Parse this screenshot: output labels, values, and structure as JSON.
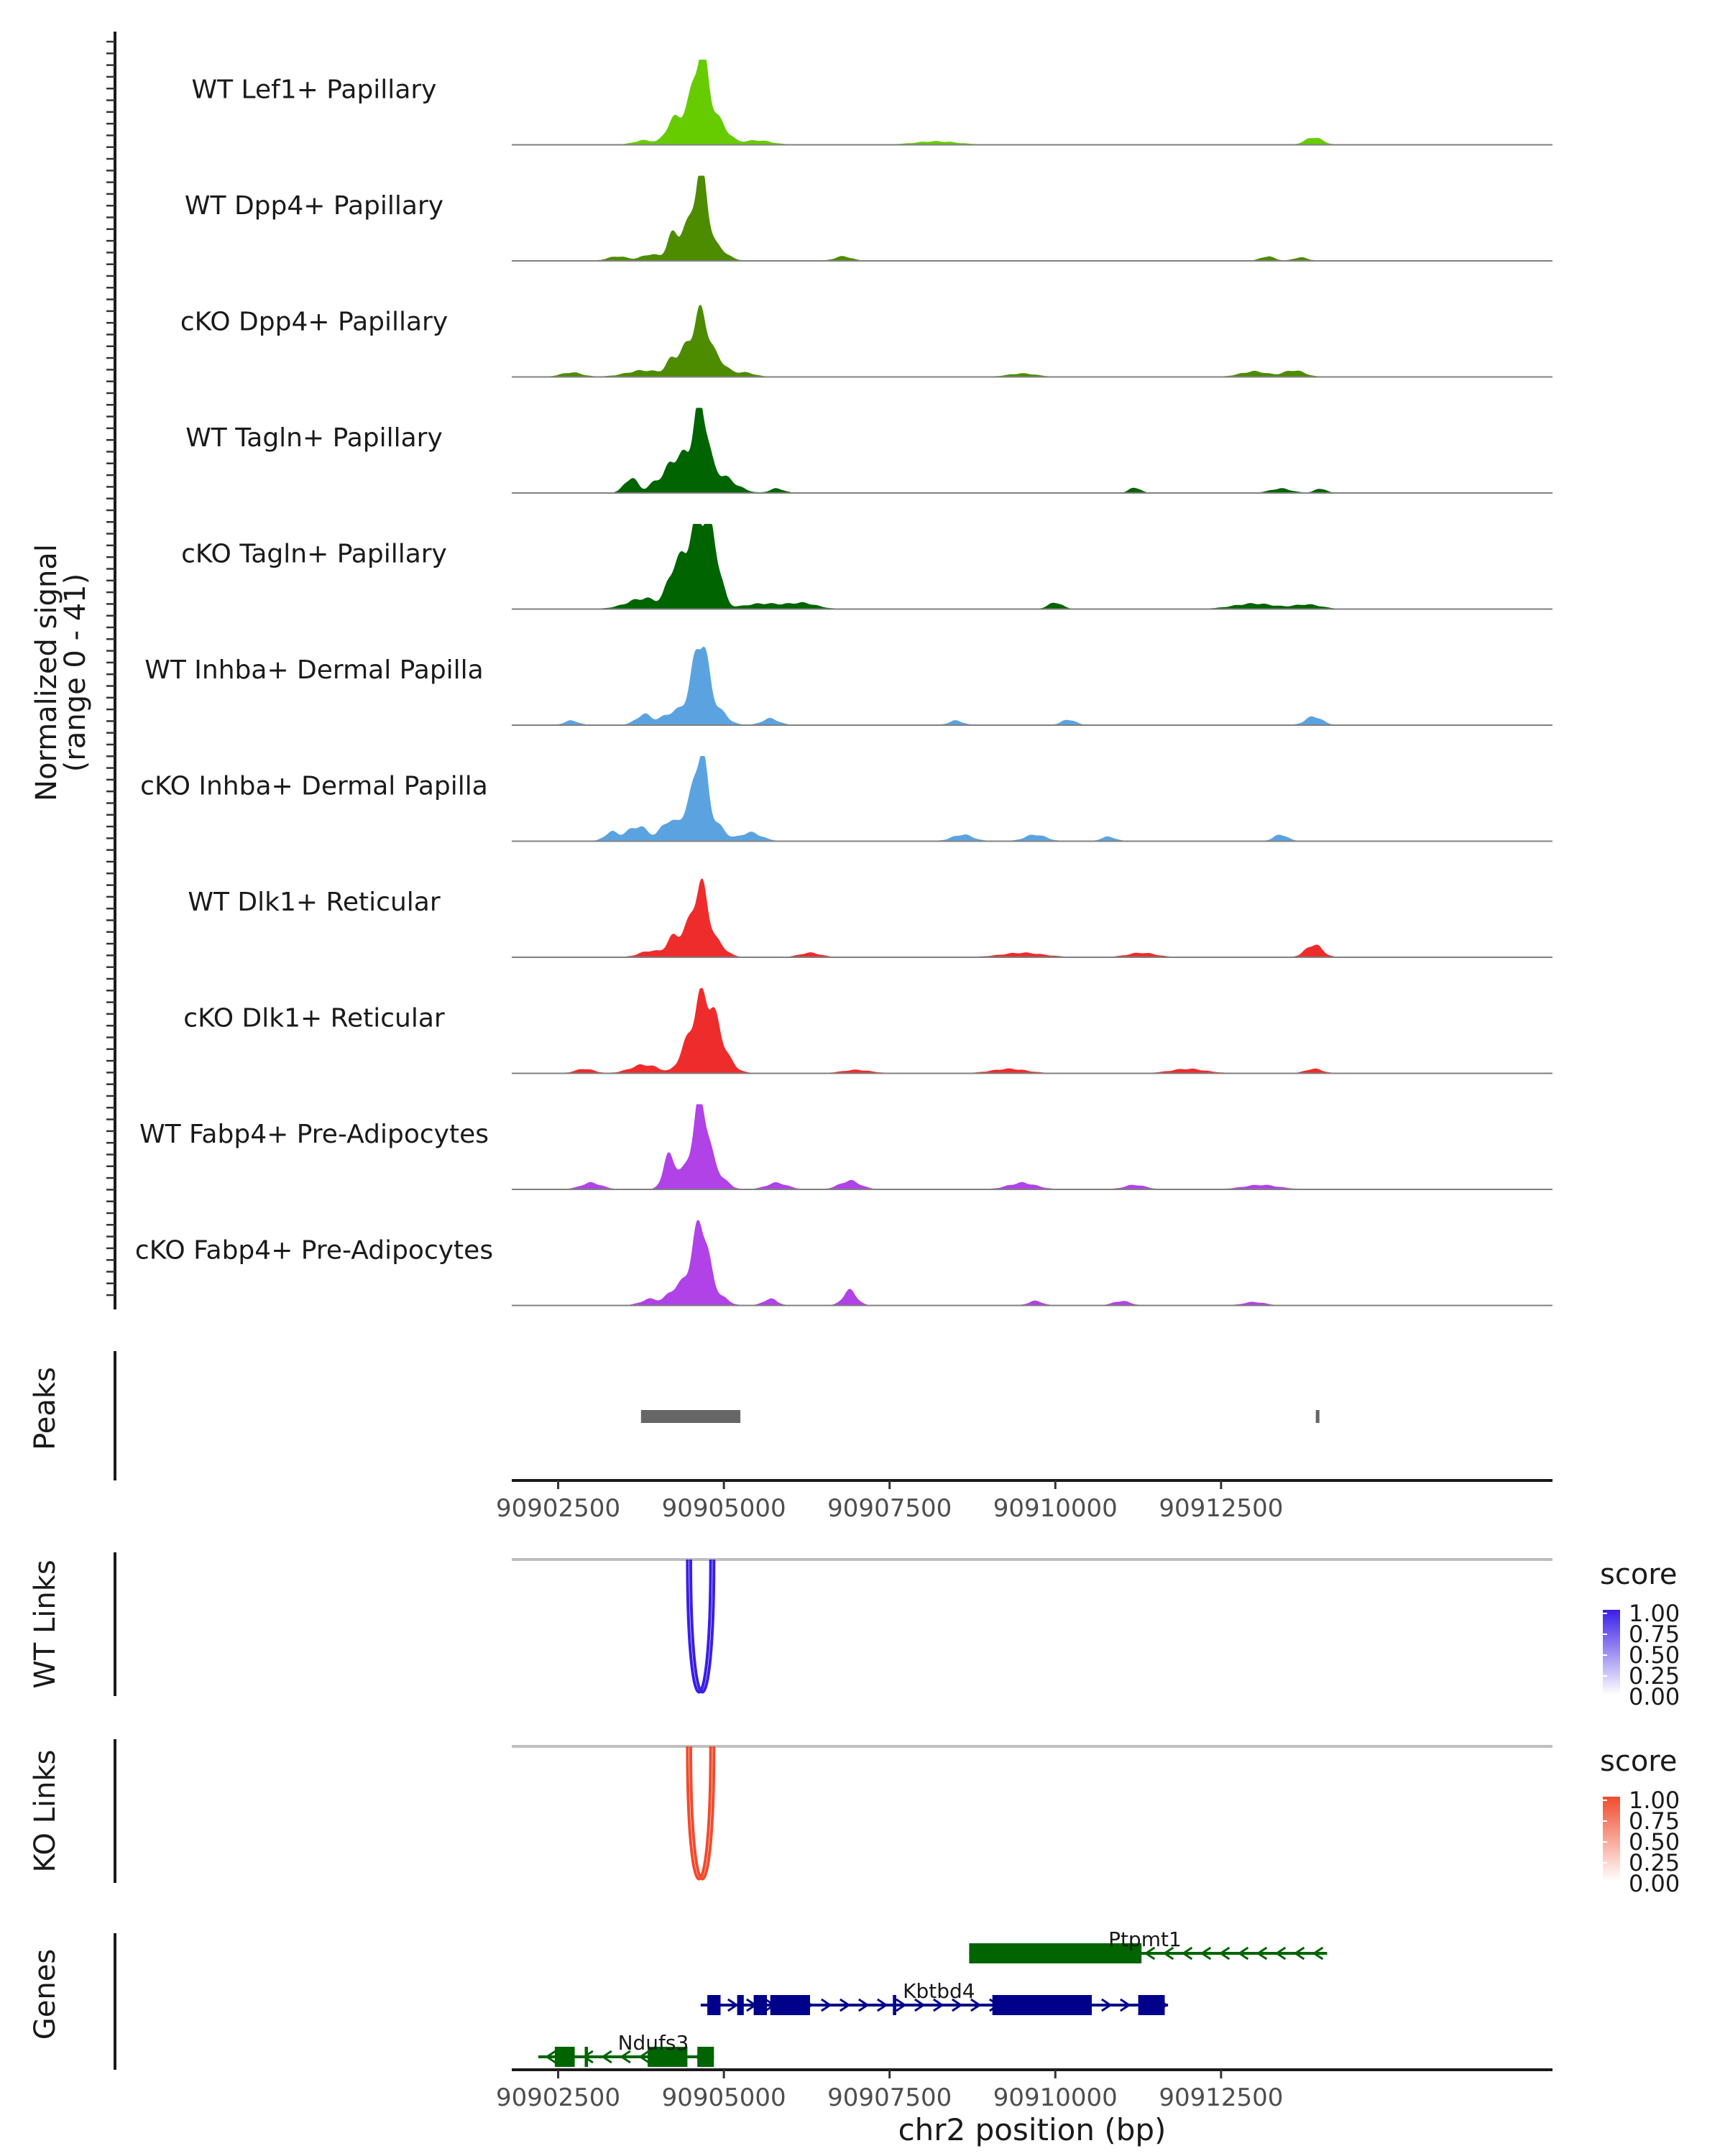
{
  "chart_data": {
    "type": "area",
    "title": "",
    "chromosome": "chr2",
    "xlabel": "chr2 position (bp)",
    "xlim": [
      90901800,
      90917500
    ],
    "x_ticks": [
      90902500,
      90905000,
      90907500,
      90910000,
      90912500
    ],
    "x_tick_labels": [
      "90902500",
      "90905000",
      "90907500",
      "90910000",
      "90912500"
    ],
    "coverage": {
      "ylabel_line1": "Normalized signal",
      "ylabel_line2": "(range 0 - 41)",
      "ylim": [
        0,
        41
      ],
      "data_extent": [
        90901800,
        90914200
      ],
      "tracks": [
        {
          "name": "WT Lef1+ Papillary",
          "color": "#66cc00",
          "peaks": [
            [
              90904650,
              41,
              110
            ],
            [
              90904400,
              12,
              120
            ],
            [
              90904200,
              8,
              100
            ],
            [
              90904900,
              11,
              150
            ],
            [
              90903800,
              2,
              150
            ],
            [
              90905500,
              2,
              200
            ],
            [
              90908200,
              1.5,
              300
            ],
            [
              90913900,
              3.5,
              120
            ]
          ]
        },
        {
          "name": "WT Dpp4+ Papillary",
          "color": "#4d8c00",
          "peaks": [
            [
              90904650,
              41,
              100
            ],
            [
              90904420,
              13,
              100
            ],
            [
              90904220,
              11,
              80
            ],
            [
              90904900,
              6,
              140
            ],
            [
              90903400,
              2,
              140
            ],
            [
              90903900,
              3,
              140
            ],
            [
              90906800,
              2,
              120
            ],
            [
              90913200,
              2,
              100
            ],
            [
              90913700,
              1.5,
              100
            ]
          ]
        },
        {
          "name": "cKO Dpp4+ Papillary",
          "color": "#4d8c00",
          "peaks": [
            [
              90904650,
              29,
              110
            ],
            [
              90904420,
              11,
              100
            ],
            [
              90904220,
              7,
              90
            ],
            [
              90904900,
              8,
              130
            ],
            [
              90902700,
              2,
              150
            ],
            [
              90903800,
              3,
              260
            ],
            [
              90905300,
              2,
              150
            ],
            [
              90909500,
              1.5,
              200
            ],
            [
              90913000,
              2.5,
              200
            ],
            [
              90913600,
              3,
              150
            ]
          ]
        },
        {
          "name": "WT Tagln+ Papillary",
          "color": "#006400",
          "peaks": [
            [
              90904650,
              40,
              100
            ],
            [
              90904420,
              16,
              100
            ],
            [
              90904220,
              13,
              90
            ],
            [
              90904900,
              8,
              150
            ],
            [
              90903600,
              7,
              100
            ],
            [
              90904000,
              6,
              110
            ],
            [
              90905150,
              3,
              150
            ],
            [
              90905800,
              2,
              100
            ],
            [
              90911200,
              2.5,
              80
            ],
            [
              90913400,
              2,
              150
            ],
            [
              90914000,
              2,
              80
            ]
          ]
        },
        {
          "name": "cKO Tagln+ Papillary",
          "color": "#006400",
          "peaks": [
            [
              90904650,
              38,
              120
            ],
            [
              90904420,
              22,
              110
            ],
            [
              90904220,
              14,
              90
            ],
            [
              90904850,
              24,
              110
            ],
            [
              90903800,
              5,
              250
            ],
            [
              90905600,
              2.5,
              300
            ],
            [
              90906200,
              2.5,
              200
            ],
            [
              90910000,
              3,
              100
            ],
            [
              90913000,
              2.5,
              300
            ],
            [
              90913800,
              2,
              200
            ]
          ]
        },
        {
          "name": "WT Inhba+ Dermal Papilla",
          "color": "#5ba3e0",
          "peaks": [
            [
              90904650,
              38,
              110
            ],
            [
              90904420,
              8,
              140
            ],
            [
              90904150,
              4,
              110
            ],
            [
              90904900,
              7,
              140
            ],
            [
              90903800,
              5,
              120
            ],
            [
              90902700,
              2,
              100
            ],
            [
              90905700,
              3,
              120
            ],
            [
              90908500,
              2,
              100
            ],
            [
              90910200,
              2.5,
              100
            ],
            [
              90913900,
              4,
              120
            ]
          ]
        },
        {
          "name": "cKO Inhba+ Dermal Papilla",
          "color": "#5ba3e0",
          "peaks": [
            [
              90904650,
              41,
              100
            ],
            [
              90904420,
              12,
              110
            ],
            [
              90904150,
              9,
              100
            ],
            [
              90904900,
              7,
              120
            ],
            [
              90903700,
              7,
              160
            ],
            [
              90903300,
              4,
              100
            ],
            [
              90905400,
              4,
              160
            ],
            [
              90908600,
              3,
              150
            ],
            [
              90909700,
              3,
              150
            ],
            [
              90910800,
              2,
              100
            ],
            [
              90913400,
              3,
              100
            ]
          ]
        },
        {
          "name": "WT Dlk1+ Reticular",
          "color": "#ee2c2c",
          "peaks": [
            [
              90904650,
              33,
              110
            ],
            [
              90904420,
              10,
              100
            ],
            [
              90904220,
              8,
              90
            ],
            [
              90904900,
              6,
              130
            ],
            [
              90903900,
              3,
              160
            ],
            [
              90906300,
              2,
              150
            ],
            [
              90909500,
              2,
              300
            ],
            [
              90911300,
              2,
              200
            ],
            [
              90913900,
              6,
              120
            ]
          ]
        },
        {
          "name": "cKO Dlk1+ Reticular",
          "color": "#ee2c2c",
          "peaks": [
            [
              90904650,
              31,
              120
            ],
            [
              90904420,
              10,
              110
            ],
            [
              90904850,
              18,
              120
            ],
            [
              90903800,
              4,
              200
            ],
            [
              90905000,
              6,
              150
            ],
            [
              90902900,
              2,
              130
            ],
            [
              90907000,
              1.5,
              200
            ],
            [
              90909300,
              2,
              250
            ],
            [
              90912000,
              2,
              250
            ],
            [
              90913900,
              2,
              120
            ]
          ]
        },
        {
          "name": "WT Fabp4+ Pre-Adipocytes",
          "color": "#b042e8",
          "peaks": [
            [
              90904650,
              41,
              110
            ],
            [
              90904420,
              7,
              100
            ],
            [
              90904180,
              16,
              90
            ],
            [
              90904900,
              7,
              130
            ],
            [
              90903000,
              3,
              150
            ],
            [
              90905800,
              3,
              150
            ],
            [
              90906900,
              4,
              150
            ],
            [
              90909500,
              3,
              200
            ],
            [
              90911200,
              2,
              150
            ],
            [
              90913100,
              2,
              250
            ]
          ]
        },
        {
          "name": "cKO Fabp4+ Pre-Adipocytes",
          "color": "#b042e8",
          "peaks": [
            [
              90904650,
              39,
              110
            ],
            [
              90904420,
              10,
              100
            ],
            [
              90904220,
              6,
              90
            ],
            [
              90904900,
              5,
              130
            ],
            [
              90903900,
              3,
              140
            ],
            [
              90905700,
              3,
              100
            ],
            [
              90906900,
              7,
              100
            ],
            [
              90909700,
              2,
              100
            ],
            [
              90911000,
              2,
              120
            ],
            [
              90913000,
              1.5,
              150
            ]
          ]
        }
      ]
    },
    "peaks_track": {
      "label": "Peaks",
      "regions": [
        [
          90903750,
          90905250
        ],
        [
          90913930,
          90913970
        ]
      ]
    },
    "links": [
      {
        "label": "WT Links",
        "legend_title": "score",
        "color": "#3a1ee6",
        "legend_ticks": [
          "1.00",
          "0.75",
          "0.50",
          "0.25",
          "0.00"
        ],
        "arcs": [
          [
            90904450,
            90904800
          ],
          [
            90904500,
            90904850
          ]
        ]
      },
      {
        "label": "KO Links",
        "legend_title": "score",
        "color": "#f04b2e",
        "legend_ticks": [
          "1.00",
          "0.75",
          "0.50",
          "0.25",
          "0.00"
        ],
        "arcs": [
          [
            90904450,
            90904800
          ],
          [
            90904500,
            90904850
          ]
        ]
      }
    ],
    "genes": {
      "label": "Genes",
      "items": [
        {
          "name": "Ptpmt1",
          "strand": "-",
          "color": "#006400",
          "row": 0,
          "start": 90908700,
          "end": 90914100,
          "label_x": 90910800,
          "exons": [
            [
              90908700,
              90911300
            ]
          ]
        },
        {
          "name": "Kbtbd4",
          "strand": "+",
          "color": "#00008b",
          "row": 1,
          "start": 90904650,
          "end": 90911700,
          "label_x": 90907700,
          "exons": [
            [
              90904750,
              90904950
            ],
            [
              90905200,
              90905300
            ],
            [
              90905450,
              90905650
            ],
            [
              90905700,
              90906300
            ],
            [
              90907550,
              90907600
            ],
            [
              90909050,
              90910550
            ],
            [
              90911250,
              90911650
            ]
          ]
        },
        {
          "name": "Ndufs3",
          "strand": "-",
          "color": "#006400",
          "row": 2,
          "start": 90902200,
          "end": 90904850,
          "label_x": 90903400,
          "exons": [
            [
              90902450,
              90902750
            ],
            [
              90902900,
              90902950
            ],
            [
              90903850,
              90904450
            ],
            [
              90904600,
              90904850
            ]
          ]
        }
      ]
    }
  }
}
